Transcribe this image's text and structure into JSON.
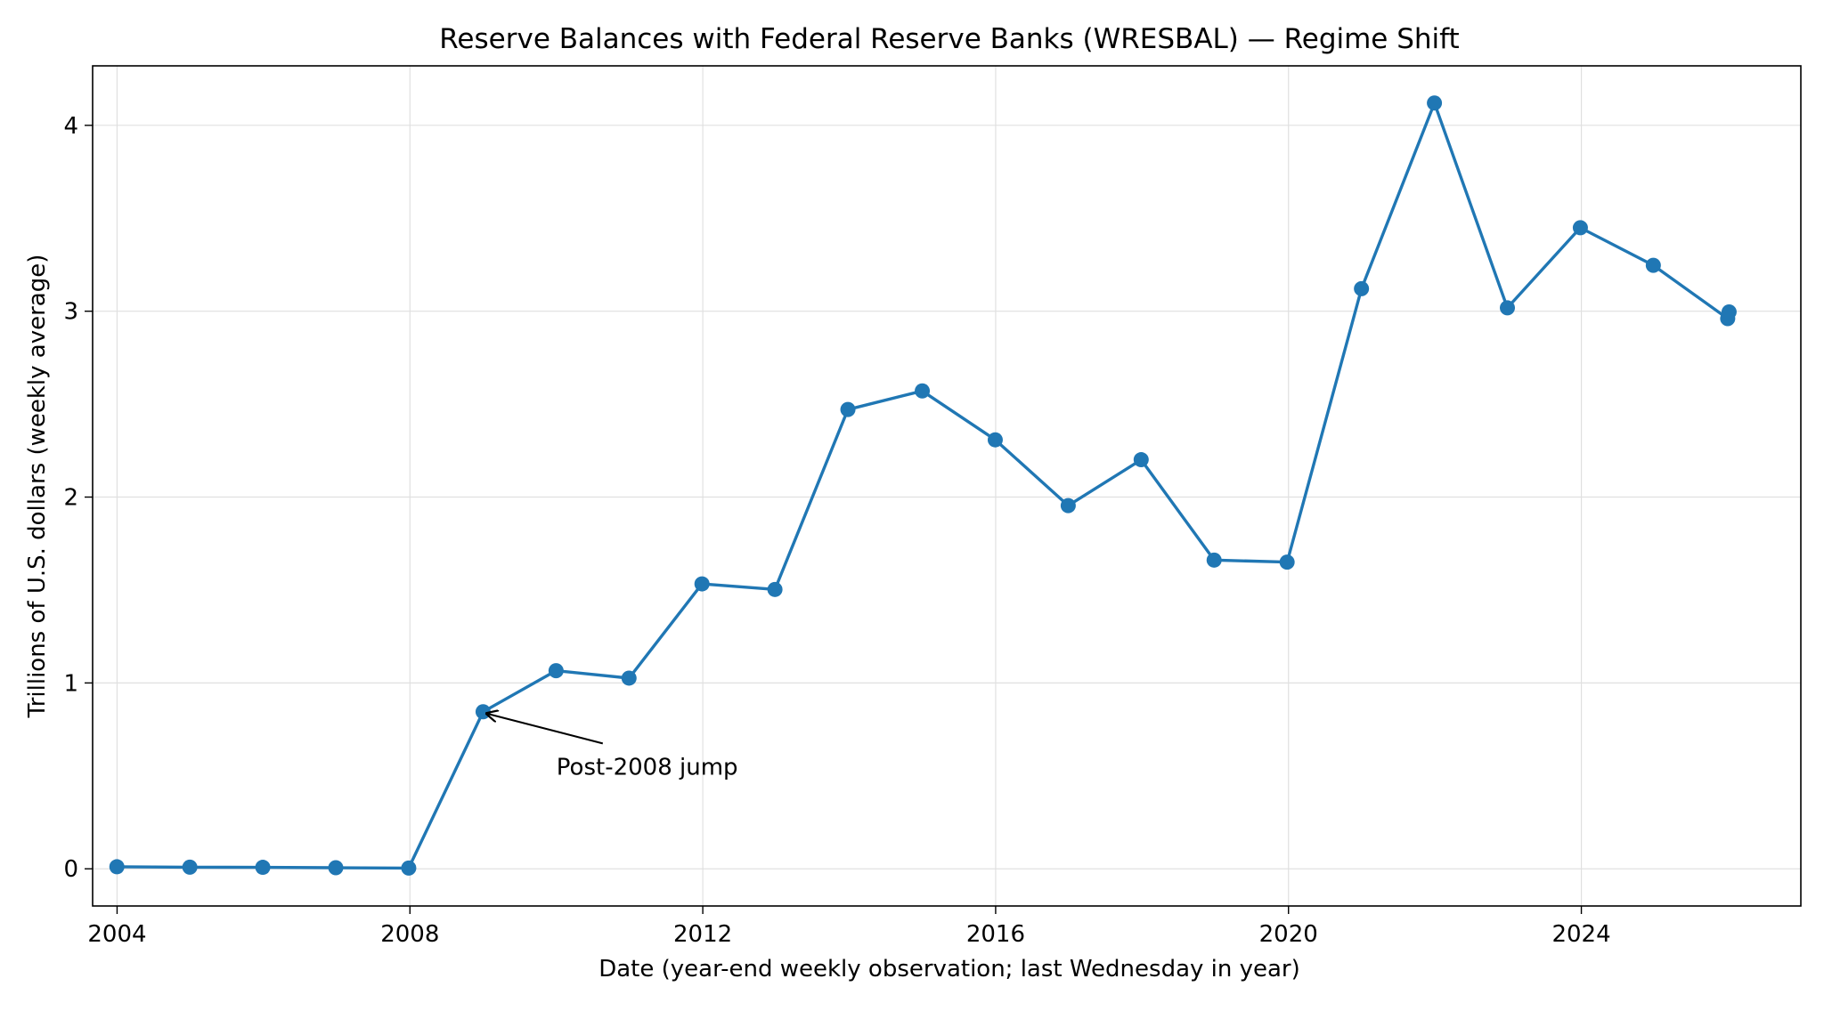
{
  "chart_data": {
    "type": "line",
    "title": "Reserve Balances with Federal Reserve Banks (WRESBAL) — Regime Shift",
    "xlabel": "Date (year-end weekly observation; last Wednesday in year)",
    "ylabel": "Trillions of U.S. dollars (weekly average)",
    "xlim": [
      "2003-09-01",
      "2026-12-31"
    ],
    "ylim": [
      -0.2,
      4.32
    ],
    "x_ticks": [
      {
        "value": "2004-01-01",
        "label": "2004"
      },
      {
        "value": "2008-01-01",
        "label": "2008"
      },
      {
        "value": "2012-01-01",
        "label": "2012"
      },
      {
        "value": "2016-01-01",
        "label": "2016"
      },
      {
        "value": "2020-01-01",
        "label": "2020"
      },
      {
        "value": "2024-01-01",
        "label": "2024"
      }
    ],
    "y_ticks": [
      0,
      1,
      2,
      3,
      4
    ],
    "grid": true,
    "series": [
      {
        "color": "#2077b4",
        "x": [
          "2003-12-31",
          "2004-12-29",
          "2005-12-28",
          "2006-12-27",
          "2007-12-26",
          "2008-12-31",
          "2009-12-30",
          "2010-12-29",
          "2011-12-28",
          "2012-12-26",
          "2013-12-25",
          "2014-12-31",
          "2015-12-30",
          "2016-12-28",
          "2017-12-27",
          "2018-12-26",
          "2019-12-25",
          "2020-12-30",
          "2021-12-29",
          "2022-12-28",
          "2023-12-27",
          "2024-12-25",
          "2025-12-31",
          "2026-01-07"
        ],
        "values": [
          0.011,
          0.009,
          0.008,
          0.006,
          0.004,
          0.845,
          1.066,
          1.026,
          1.533,
          1.503,
          2.471,
          2.571,
          2.308,
          1.954,
          2.201,
          1.661,
          1.65,
          3.121,
          4.12,
          3.018,
          3.449,
          3.247,
          2.96,
          2.996
        ]
      }
    ],
    "annotations": [
      {
        "text": "Post-2008 jump",
        "x": "2008-12-31",
        "y": 0.845,
        "text_x": "2010-01-01",
        "text_y": 0.55
      }
    ]
  }
}
